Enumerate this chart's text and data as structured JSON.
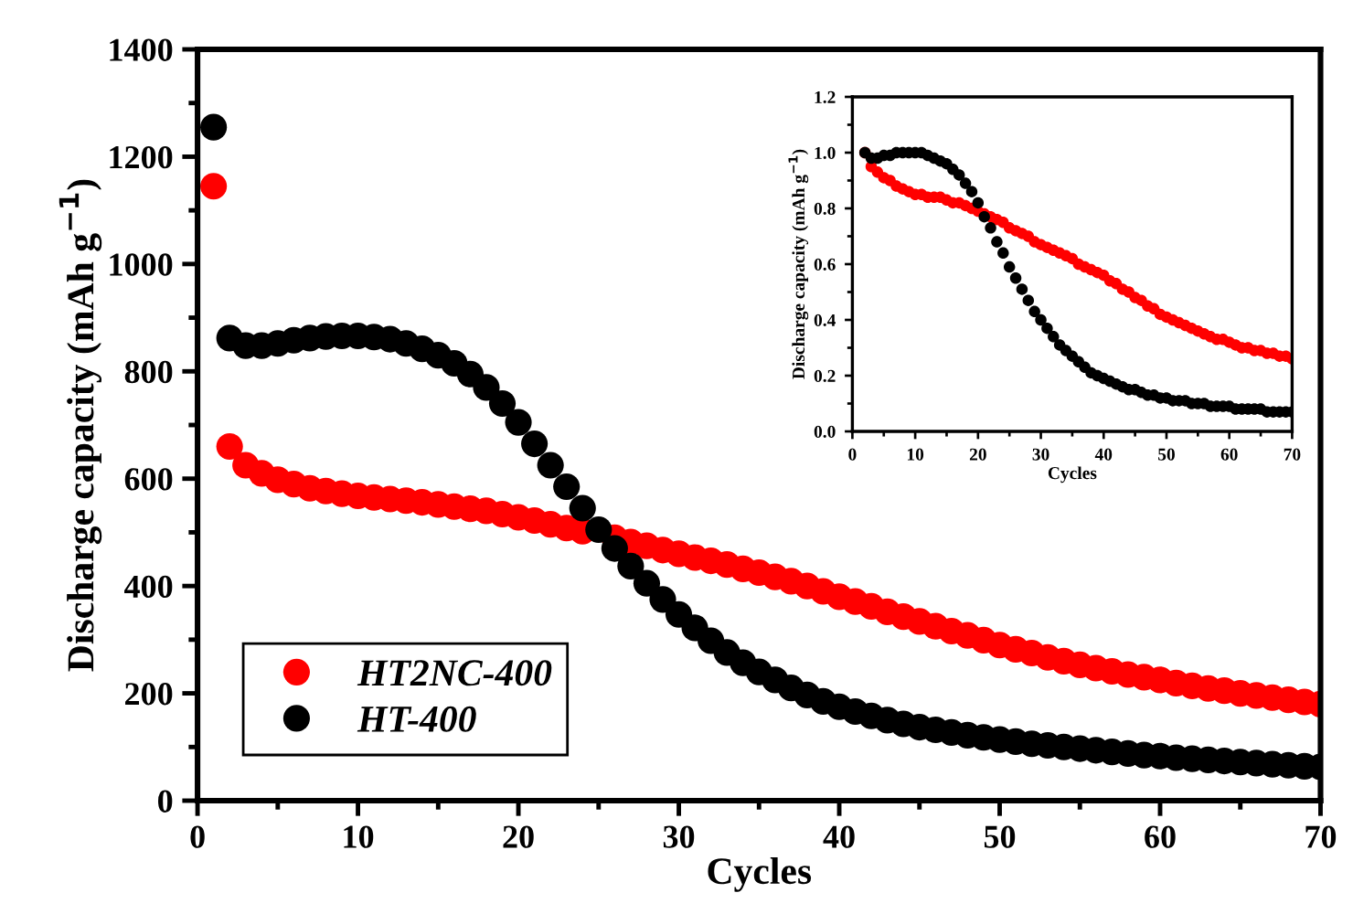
{
  "chart_data": [
    {
      "type": "scatter",
      "xlabel": "Cycles",
      "ylabel": "Discharge capacity (mAh g$^{−1}$)",
      "xlim": [
        0,
        70
      ],
      "xticks": [
        0,
        10,
        20,
        30,
        40,
        50,
        60,
        70
      ],
      "ylim": [
        0,
        1400
      ],
      "yticks": [
        0,
        200,
        400,
        600,
        800,
        1000,
        1200,
        1400
      ],
      "marker": "circle",
      "legend": "bottom left",
      "grid": false,
      "series": [
        {
          "name": "HT2NC-400",
          "color": "#ff0000",
          "x": [
            1,
            2,
            3,
            4,
            5,
            6,
            7,
            8,
            9,
            10,
            11,
            12,
            13,
            14,
            15,
            16,
            17,
            18,
            19,
            20,
            21,
            22,
            23,
            24,
            25,
            26,
            27,
            28,
            29,
            30,
            31,
            32,
            33,
            34,
            35,
            36,
            37,
            38,
            39,
            40,
            41,
            42,
            43,
            44,
            45,
            46,
            47,
            48,
            49,
            50,
            51,
            52,
            53,
            54,
            55,
            56,
            57,
            58,
            59,
            60,
            61,
            62,
            63,
            64,
            65,
            66,
            67,
            68,
            69,
            70
          ],
          "values": [
            1145,
            660,
            625,
            610,
            598,
            590,
            582,
            577,
            572,
            568,
            565,
            562,
            559,
            556,
            552,
            548,
            544,
            540,
            534,
            528,
            522,
            515,
            508,
            502,
            null,
            490,
            482,
            475,
            467,
            460,
            453,
            447,
            440,
            432,
            425,
            417,
            409,
            400,
            390,
            380,
            371,
            362,
            352,
            343,
            334,
            325,
            316,
            308,
            299,
            290,
            282,
            275,
            267,
            260,
            253,
            247,
            241,
            235,
            230,
            225,
            219,
            214,
            209,
            205,
            200,
            196,
            192,
            188,
            184,
            180
          ]
        },
        {
          "name": "HT-400",
          "color": "#000000",
          "x": [
            1,
            2,
            3,
            4,
            5,
            6,
            7,
            8,
            9,
            10,
            11,
            12,
            13,
            14,
            15,
            16,
            17,
            18,
            19,
            20,
            21,
            22,
            23,
            24,
            25,
            26,
            27,
            28,
            29,
            30,
            31,
            32,
            33,
            34,
            35,
            36,
            37,
            38,
            39,
            40,
            41,
            42,
            43,
            44,
            45,
            46,
            47,
            48,
            49,
            50,
            51,
            52,
            53,
            54,
            55,
            56,
            57,
            58,
            59,
            60,
            61,
            62,
            63,
            64,
            65,
            66,
            67,
            68,
            69,
            70
          ],
          "values": [
            1255,
            862,
            848,
            848,
            852,
            858,
            862,
            865,
            866,
            866,
            864,
            860,
            852,
            842,
            830,
            815,
            795,
            770,
            740,
            705,
            665,
            625,
            585,
            545,
            505,
            470,
            437,
            405,
            375,
            347,
            322,
            298,
            276,
            257,
            240,
            225,
            210,
            197,
            185,
            175,
            166,
            158,
            150,
            143,
            137,
            132,
            127,
            122,
            118,
            114,
            110,
            106,
            103,
            100,
            97,
            94,
            91,
            88,
            85,
            83,
            80,
            78,
            76,
            74,
            72,
            70,
            68,
            66,
            64,
            63
          ]
        }
      ]
    },
    {
      "type": "scatter",
      "xlabel": "Cycles",
      "ylabel": "Discharge capacity (mAh g$^{−1}$)",
      "xlim": [
        0,
        70
      ],
      "xticks": [
        0,
        10,
        20,
        30,
        40,
        50,
        60,
        70
      ],
      "ylim": [
        0,
        1.2
      ],
      "yticks": [
        {
          "value": 0,
          "label": "0.0"
        },
        0.2,
        0.4,
        0.6,
        0.8,
        {
          "value": 1.0,
          "label": "1.0"
        },
        1.2
      ],
      "marker": "circle",
      "grid": false,
      "series": [
        {
          "color": "#ff0000",
          "x": [
            2,
            3,
            4,
            5,
            6,
            7,
            8,
            9,
            10,
            11,
            12,
            13,
            14,
            15,
            16,
            17,
            18,
            19,
            20,
            21,
            22,
            23,
            24,
            25,
            26,
            27,
            28,
            29,
            30,
            31,
            32,
            33,
            34,
            35,
            36,
            37,
            38,
            39,
            40,
            41,
            42,
            43,
            44,
            45,
            46,
            47,
            48,
            49,
            50,
            51,
            52,
            53,
            54,
            55,
            56,
            57,
            58,
            59,
            60,
            61,
            62,
            63,
            64,
            65,
            66,
            67,
            68,
            69,
            70
          ],
          "values": [
            1.0,
            0.95,
            0.93,
            0.91,
            0.9,
            0.88,
            0.87,
            0.86,
            0.85,
            0.85,
            0.84,
            0.84,
            0.84,
            0.83,
            0.82,
            0.82,
            0.81,
            0.8,
            0.79,
            0.78,
            0.77,
            0.76,
            0.75,
            0.73,
            0.72,
            0.71,
            0.7,
            0.68,
            0.67,
            0.66,
            0.65,
            0.64,
            0.63,
            0.62,
            0.6,
            0.59,
            0.58,
            0.57,
            0.56,
            0.54,
            0.53,
            0.51,
            0.5,
            0.48,
            0.47,
            0.45,
            0.44,
            0.42,
            0.41,
            0.4,
            0.39,
            0.38,
            0.37,
            0.36,
            0.35,
            0.34,
            0.33,
            0.33,
            0.32,
            0.31,
            0.3,
            0.3,
            0.29,
            0.29,
            0.28,
            0.28,
            0.27,
            0.27,
            0.26
          ]
        },
        {
          "color": "#000000",
          "x": [
            2,
            3,
            4,
            5,
            6,
            7,
            8,
            9,
            10,
            11,
            12,
            13,
            14,
            15,
            16,
            17,
            18,
            19,
            20,
            21,
            22,
            23,
            24,
            25,
            26,
            27,
            28,
            29,
            30,
            31,
            32,
            33,
            34,
            35,
            36,
            37,
            38,
            39,
            40,
            41,
            42,
            43,
            44,
            45,
            46,
            47,
            48,
            49,
            50,
            51,
            52,
            53,
            54,
            55,
            56,
            57,
            58,
            59,
            60,
            61,
            62,
            63,
            64,
            65,
            66,
            67,
            68,
            69,
            70
          ],
          "values": [
            1.0,
            0.98,
            0.98,
            0.99,
            0.99,
            1.0,
            1.0,
            1.0,
            1.0,
            1.0,
            0.99,
            0.98,
            0.97,
            0.96,
            0.94,
            0.92,
            0.89,
            0.86,
            0.82,
            0.77,
            0.73,
            0.68,
            0.64,
            0.59,
            0.55,
            0.51,
            0.47,
            0.43,
            0.4,
            0.37,
            0.34,
            0.31,
            0.29,
            0.27,
            0.25,
            0.23,
            0.21,
            0.2,
            0.19,
            0.18,
            0.17,
            0.16,
            0.15,
            0.15,
            0.14,
            0.13,
            0.13,
            0.12,
            0.12,
            0.11,
            0.11,
            0.11,
            0.1,
            0.1,
            0.1,
            0.09,
            0.09,
            0.09,
            0.09,
            0.08,
            0.08,
            0.08,
            0.08,
            0.08,
            0.07,
            0.07,
            0.07,
            0.07,
            0.07
          ]
        }
      ]
    }
  ]
}
